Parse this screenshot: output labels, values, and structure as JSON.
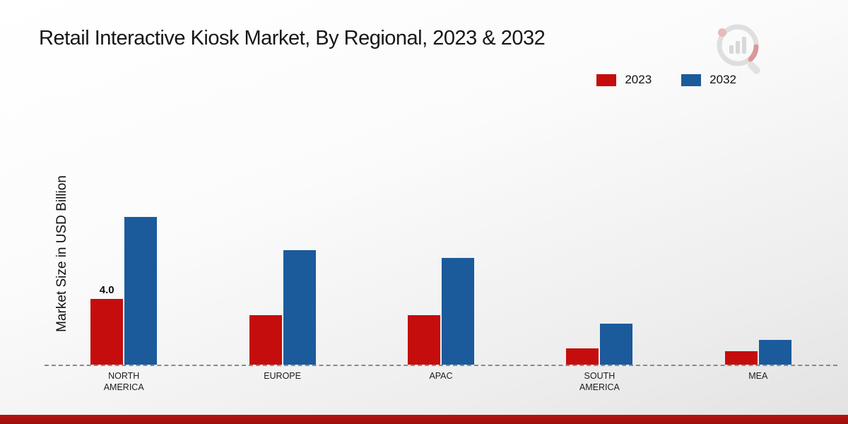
{
  "title": "Retail Interactive Kiosk Market, By Regional, 2023 & 2032",
  "ylabel": "Market Size in USD Billion",
  "colors": {
    "series2023": "#c50d0d",
    "series2032": "#1b5a9b",
    "bottom_strip": "#a31210"
  },
  "icons": {
    "logo": "magnifier-bar-chart-logo"
  },
  "legend": {
    "position": "top-right",
    "items": [
      {
        "label": "2023",
        "color": "#c50d0d"
      },
      {
        "label": "2032",
        "color": "#1b5a9b"
      }
    ]
  },
  "chart_data": {
    "type": "bar",
    "title": "Retail Interactive Kiosk Market, By Regional, 2023 & 2032",
    "xlabel": "",
    "ylabel": "Market Size in USD Billion",
    "categories": [
      "NORTH AMERICA",
      "EUROPE",
      "APAC",
      "SOUTH AMERICA",
      "MEA"
    ],
    "series": [
      {
        "name": "2023",
        "color": "#c50d0d",
        "values": [
          4.0,
          3.0,
          3.0,
          1.0,
          0.8
        ]
      },
      {
        "name": "2032",
        "color": "#1b5a9b",
        "values": [
          9.0,
          7.0,
          6.5,
          2.5,
          1.5
        ]
      }
    ],
    "annotations": [
      {
        "series_index": 0,
        "category_index": 0,
        "text": "4.0"
      }
    ],
    "ylim": [
      0,
      12
    ],
    "grid": false,
    "baseline_style": "dashed",
    "legend_position": "top-right"
  }
}
